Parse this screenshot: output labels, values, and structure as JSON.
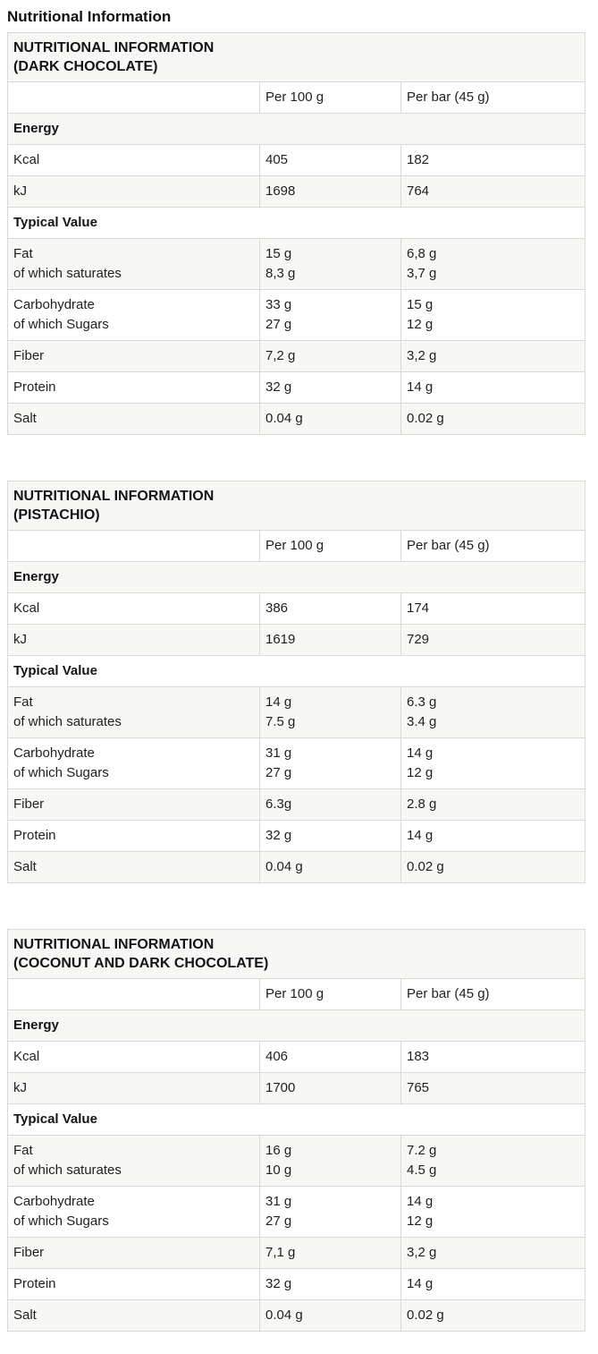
{
  "page": {
    "title": "Nutritional Information"
  },
  "columns": {
    "per_100g": "Per 100 g",
    "per_bar": "Per bar (45 g)"
  },
  "colors": {
    "stripe": "#f7f7f5",
    "border": "#d9d9d6",
    "text": "#1f1f1e"
  },
  "tables": [
    {
      "title_line1": "NUTRITIONAL INFORMATION",
      "title_line2": "(DARK CHOCOLATE)",
      "sections": [
        {
          "header": "Energy",
          "rows": [
            {
              "labels": [
                "Kcal"
              ],
              "per_100g": [
                "405"
              ],
              "per_bar": [
                "182"
              ]
            },
            {
              "labels": [
                "kJ"
              ],
              "per_100g": [
                "1698"
              ],
              "per_bar": [
                "764"
              ]
            }
          ]
        },
        {
          "header": "Typical Value",
          "rows": [
            {
              "labels": [
                "Fat",
                "of which saturates"
              ],
              "per_100g": [
                "15 g",
                "8,3 g"
              ],
              "per_bar": [
                "6,8 g",
                "3,7 g"
              ]
            },
            {
              "labels": [
                "Carbohydrate",
                "of which Sugars"
              ],
              "per_100g": [
                "33 g",
                "27 g"
              ],
              "per_bar": [
                "15 g",
                "12 g"
              ]
            },
            {
              "labels": [
                "Fiber"
              ],
              "per_100g": [
                "7,2 g"
              ],
              "per_bar": [
                "3,2 g"
              ]
            },
            {
              "labels": [
                "Protein"
              ],
              "per_100g": [
                "32 g"
              ],
              "per_bar": [
                "14 g"
              ]
            },
            {
              "labels": [
                "Salt"
              ],
              "per_100g": [
                "0.04 g"
              ],
              "per_bar": [
                "0.02 g"
              ]
            }
          ]
        }
      ]
    },
    {
      "title_line1": "NUTRITIONAL INFORMATION",
      "title_line2": "(PISTACHIO)",
      "sections": [
        {
          "header": "Energy",
          "rows": [
            {
              "labels": [
                "Kcal"
              ],
              "per_100g": [
                "386"
              ],
              "per_bar": [
                "174"
              ]
            },
            {
              "labels": [
                "kJ"
              ],
              "per_100g": [
                "1619"
              ],
              "per_bar": [
                "729"
              ]
            }
          ]
        },
        {
          "header": "Typical Value",
          "rows": [
            {
              "labels": [
                "Fat",
                "of which saturates"
              ],
              "per_100g": [
                "14 g",
                "7.5 g"
              ],
              "per_bar": [
                "6.3 g",
                "3.4 g"
              ]
            },
            {
              "labels": [
                "Carbohydrate",
                "of which Sugars"
              ],
              "per_100g": [
                "31 g",
                "27 g"
              ],
              "per_bar": [
                "14 g",
                "12 g"
              ]
            },
            {
              "labels": [
                "Fiber"
              ],
              "per_100g": [
                "6.3g"
              ],
              "per_bar": [
                "2.8 g"
              ]
            },
            {
              "labels": [
                "Protein"
              ],
              "per_100g": [
                "32 g"
              ],
              "per_bar": [
                "14 g"
              ]
            },
            {
              "labels": [
                "Salt"
              ],
              "per_100g": [
                "0.04 g"
              ],
              "per_bar": [
                "0.02 g"
              ]
            }
          ]
        }
      ]
    },
    {
      "title_line1": "NUTRITIONAL INFORMATION",
      "title_line2": "(COCONUT AND DARK CHOCOLATE)",
      "sections": [
        {
          "header": "Energy",
          "rows": [
            {
              "labels": [
                "Kcal"
              ],
              "per_100g": [
                "406"
              ],
              "per_bar": [
                "183"
              ]
            },
            {
              "labels": [
                "kJ"
              ],
              "per_100g": [
                "1700"
              ],
              "per_bar": [
                "765"
              ]
            }
          ]
        },
        {
          "header": "Typical Value",
          "rows": [
            {
              "labels": [
                "Fat",
                "of which saturates"
              ],
              "per_100g": [
                "16 g",
                "10 g"
              ],
              "per_bar": [
                "7.2 g",
                "4.5 g"
              ]
            },
            {
              "labels": [
                "Carbohydrate",
                "of which Sugars"
              ],
              "per_100g": [
                "31 g",
                "27 g"
              ],
              "per_bar": [
                "14 g",
                "12 g"
              ]
            },
            {
              "labels": [
                "Fiber"
              ],
              "per_100g": [
                "7,1 g"
              ],
              "per_bar": [
                "3,2 g"
              ]
            },
            {
              "labels": [
                "Protein"
              ],
              "per_100g": [
                "32 g"
              ],
              "per_bar": [
                "14 g"
              ]
            },
            {
              "labels": [
                "Salt"
              ],
              "per_100g": [
                "0.04 g"
              ],
              "per_bar": [
                "0.02 g"
              ]
            }
          ]
        }
      ]
    }
  ]
}
